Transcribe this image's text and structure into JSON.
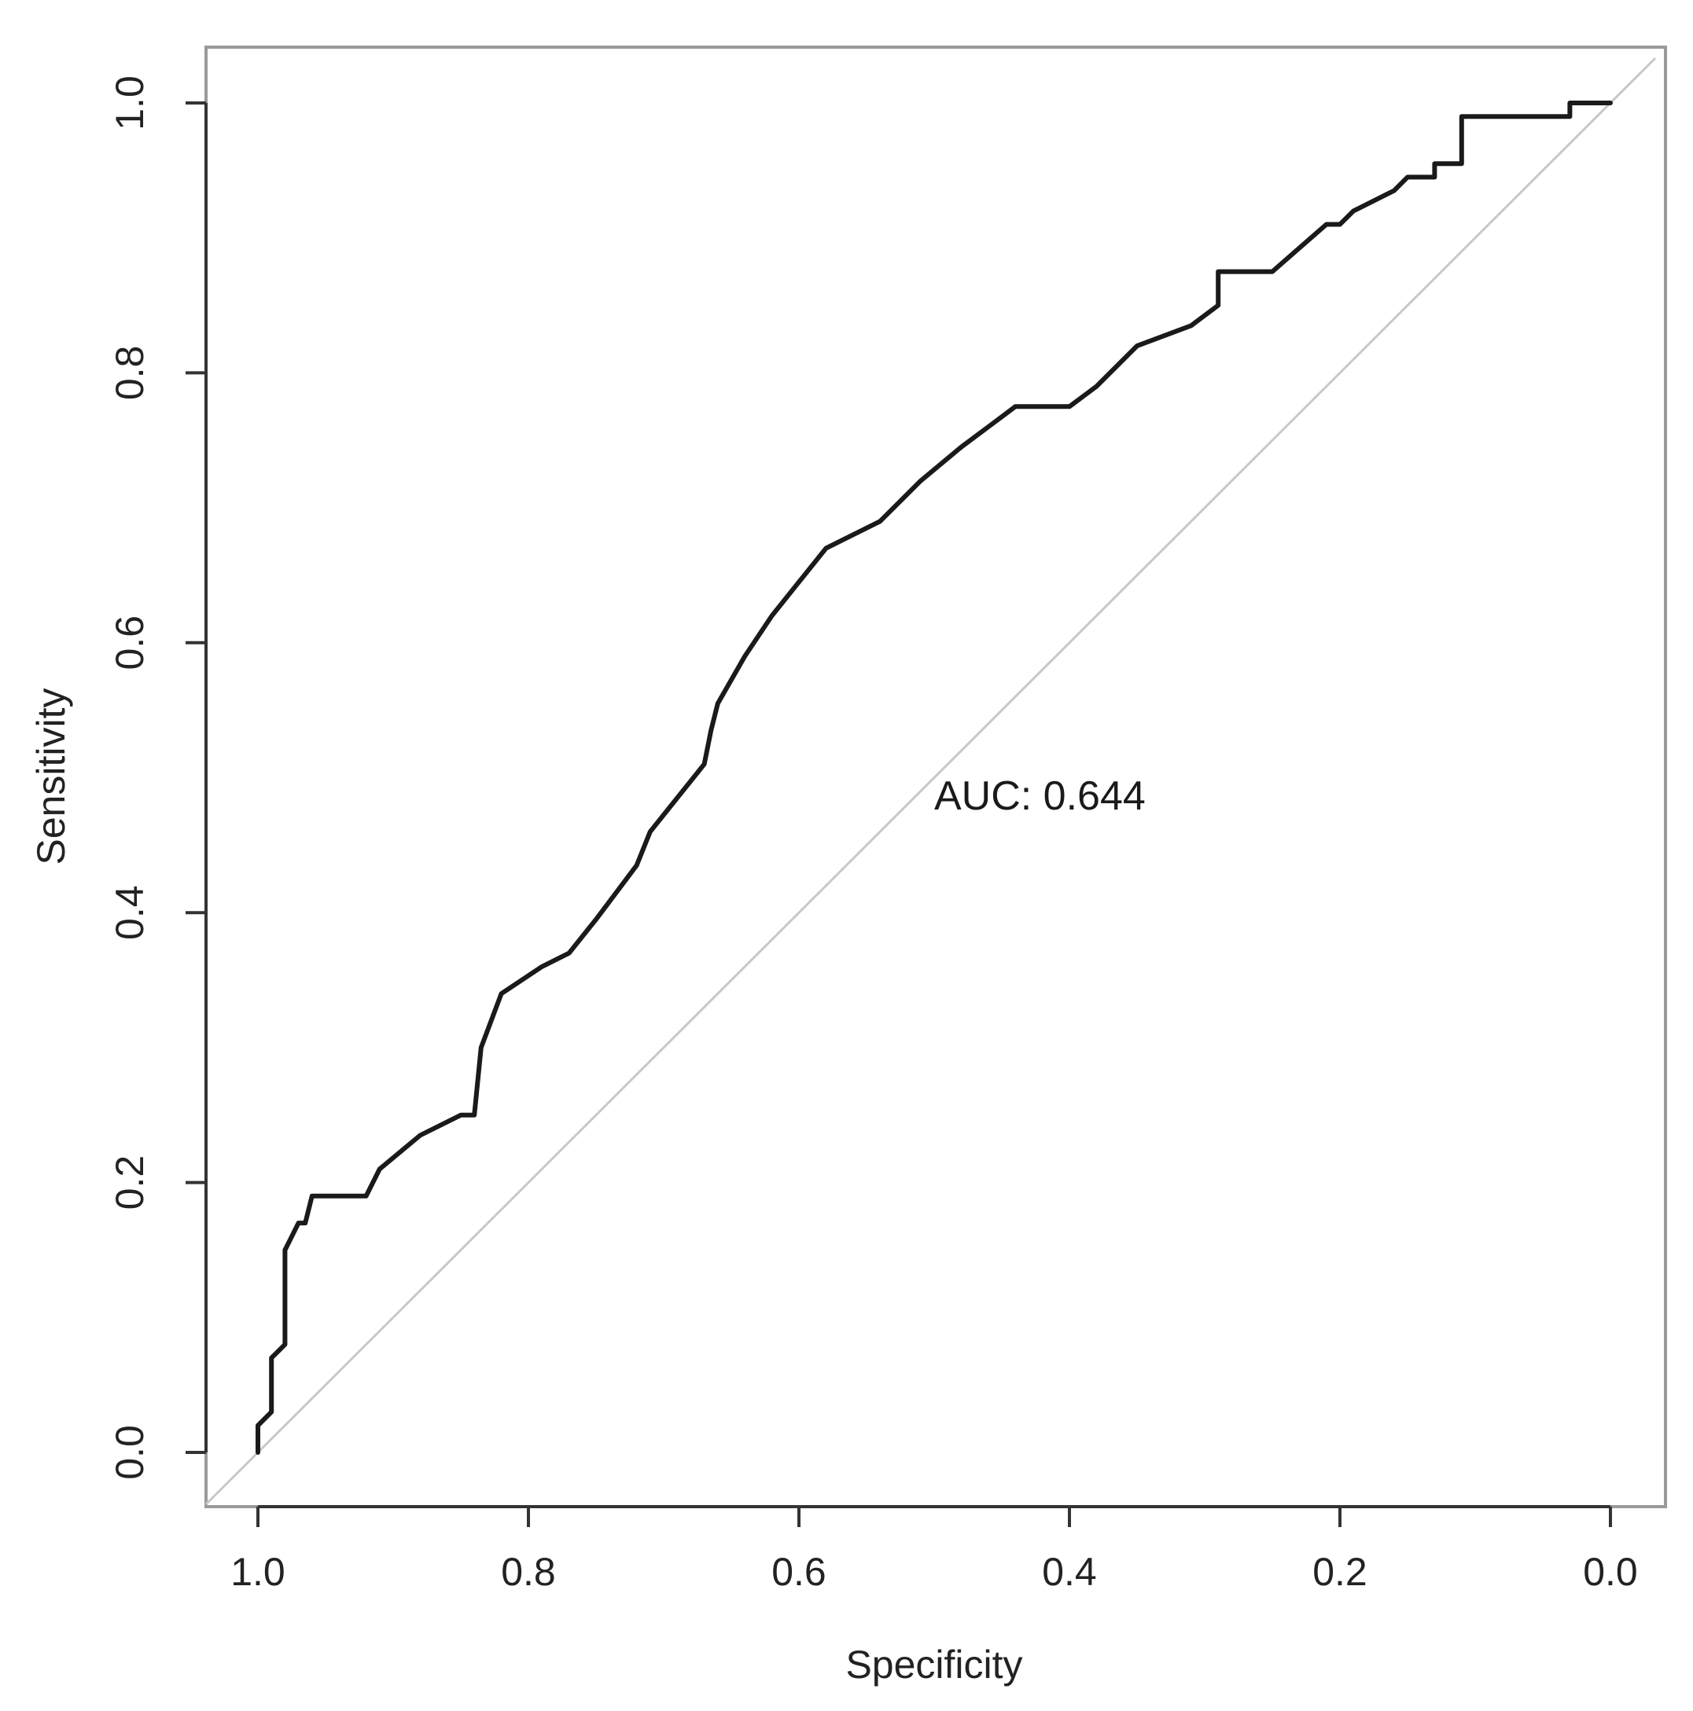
{
  "chart_data": {
    "type": "line",
    "xlabel": "Specificity",
    "ylabel": "Sensitivity",
    "xlim": [
      1.0,
      0.0
    ],
    "ylim": [
      0.0,
      1.0
    ],
    "x_reversed": true,
    "grid": false,
    "x_ticks": [
      "1.0",
      "0.8",
      "0.6",
      "0.4",
      "0.2",
      "0.0"
    ],
    "y_ticks": [
      "0.0",
      "0.2",
      "0.4",
      "0.6",
      "0.8",
      "1.0"
    ],
    "annotation": "AUC: 0.644",
    "reference_line": {
      "x": [
        1.0,
        0.0
      ],
      "y": [
        0.0,
        1.0
      ]
    },
    "series": [
      {
        "specificity": [
          1.0,
          1.0,
          0.99,
          0.99,
          0.985,
          0.98,
          0.98,
          0.975,
          0.97,
          0.965,
          0.96,
          0.92,
          0.91,
          0.88,
          0.85,
          0.84,
          0.835,
          0.82,
          0.79,
          0.77,
          0.75,
          0.72,
          0.71,
          0.67,
          0.665,
          0.66,
          0.64,
          0.62,
          0.6,
          0.58,
          0.54,
          0.51,
          0.48,
          0.46,
          0.44,
          0.43,
          0.4,
          0.38,
          0.35,
          0.31,
          0.29,
          0.29,
          0.25,
          0.21,
          0.2,
          0.19,
          0.16,
          0.15,
          0.13,
          0.13,
          0.11,
          0.11,
          0.03,
          0.03,
          0.0
        ],
        "sensitivity": [
          0.0,
          0.02,
          0.03,
          0.07,
          0.075,
          0.08,
          0.15,
          0.16,
          0.17,
          0.17,
          0.19,
          0.19,
          0.21,
          0.235,
          0.25,
          0.25,
          0.3,
          0.34,
          0.36,
          0.37,
          0.395,
          0.435,
          0.46,
          0.51,
          0.535,
          0.555,
          0.59,
          0.62,
          0.645,
          0.67,
          0.69,
          0.72,
          0.745,
          0.76,
          0.775,
          0.775,
          0.775,
          0.79,
          0.82,
          0.835,
          0.85,
          0.875,
          0.875,
          0.91,
          0.91,
          0.92,
          0.935,
          0.945,
          0.945,
          0.955,
          0.955,
          0.99,
          0.99,
          1.0,
          1.0
        ]
      }
    ]
  }
}
